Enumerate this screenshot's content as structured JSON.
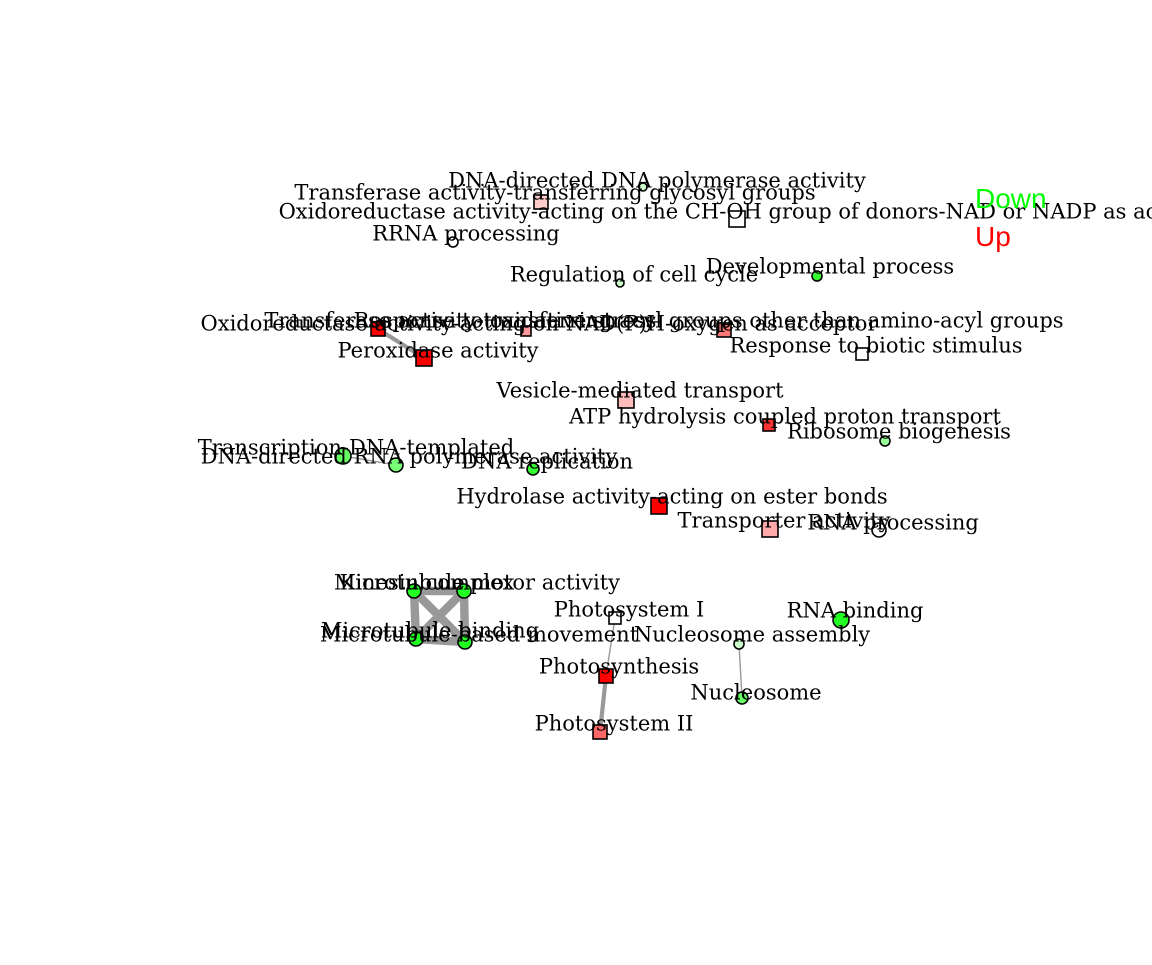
{
  "legend": [
    {
      "label": "Down",
      "color": "#00ff00"
    },
    {
      "label": "Up",
      "color": "#ff0000"
    }
  ],
  "nodes": [
    {
      "id": "dna_pol",
      "label": "DNA-directed DNA polymerase activity",
      "shape": "circle",
      "fill": "#ccffcc"
    },
    {
      "id": "transferase_glyco",
      "label": "Transferase activity-transferring glycosyl groups",
      "shape": "square",
      "fill": "#ffcccc"
    },
    {
      "id": "oxred_choh",
      "label": "Oxidoreductase activity-acting on the CH-OH group of donors-NAD or NADP as ac",
      "shape": "square",
      "fill": "#ffffff"
    },
    {
      "id": "rrna_proc",
      "label": "RRNA processing",
      "shape": "circle",
      "fill": "#ffffff"
    },
    {
      "id": "reg_cell_cycle",
      "label": "Regulation of cell cycle",
      "shape": "circle",
      "fill": "#ccffcc"
    },
    {
      "id": "dev_process",
      "label": "Developmental process",
      "shape": "circle",
      "fill": "#33ff33"
    },
    {
      "id": "resp_oxidative",
      "label": "Response to oxidative stress",
      "shape": "square",
      "fill": "#ff0000"
    },
    {
      "id": "oxred_nadph",
      "label": "Oxidoreductase activity-acting on NAD(P)H-oxygen as acceptor",
      "shape": "square",
      "fill": "#ff9999"
    },
    {
      "id": "transferase_acyl",
      "label": "Transferase activity-transferring acyl groups other than amino-acyl groups",
      "shape": "square",
      "fill": "#ff7777"
    },
    {
      "id": "peroxidase",
      "label": "Peroxidase activity",
      "shape": "square",
      "fill": "#ff0000"
    },
    {
      "id": "resp_biotic",
      "label": "Response to biotic stimulus",
      "shape": "square",
      "fill": "#ffffff"
    },
    {
      "id": "vesicle",
      "label": "Vesicle-mediated transport",
      "shape": "square",
      "fill": "#ffbbbb"
    },
    {
      "id": "atp_hydro",
      "label": "ATP hydrolysis coupled proton transport",
      "shape": "square",
      "fill": "#ff3333"
    },
    {
      "id": "ribosome_bio",
      "label": "Ribosome biogenesis",
      "shape": "circle",
      "fill": "#99ff99"
    },
    {
      "id": "transcription",
      "label": "Transcription-DNA-templated",
      "shape": "circle",
      "fill": "#66ff66"
    },
    {
      "id": "dna_rna_pol",
      "label": "DNA-directed RNA polymerase activity",
      "shape": "circle",
      "fill": "#77ff77"
    },
    {
      "id": "dna_repl",
      "label": "DNA replication",
      "shape": "circle",
      "fill": "#33ff33"
    },
    {
      "id": "hydrolase_ester",
      "label": "Hydrolase activity-acting on ester bonds",
      "shape": "square",
      "fill": "#ff0000"
    },
    {
      "id": "transporter",
      "label": "Transporter activity",
      "shape": "square",
      "fill": "#ffaaaa"
    },
    {
      "id": "rna_proc",
      "label": "RNA processing",
      "shape": "circle",
      "fill": "#ffffff"
    },
    {
      "id": "kinesin",
      "label": "Kinesin complex",
      "shape": "circle",
      "fill": "#22ff22"
    },
    {
      "id": "micro_motor",
      "label": "Microtubule motor activity",
      "shape": "circle",
      "fill": "#22ff22"
    },
    {
      "id": "micro_binding",
      "label": "Microtubule binding",
      "shape": "circle",
      "fill": "#22ff22"
    },
    {
      "id": "micro_movement",
      "label": "Microtubule-based movement",
      "shape": "circle",
      "fill": "#22ff22"
    },
    {
      "id": "photosystem1",
      "label": "Photosystem I",
      "shape": "square",
      "fill": "#ffffff"
    },
    {
      "id": "rna_binding",
      "label": "RNA binding",
      "shape": "circle",
      "fill": "#22ff22"
    },
    {
      "id": "nucleosome_asm",
      "label": "Nucleosome assembly",
      "shape": "circle",
      "fill": "#ccffcc"
    },
    {
      "id": "photosynthesis",
      "label": "Photosynthesis",
      "shape": "square",
      "fill": "#ff0000"
    },
    {
      "id": "nucleosome",
      "label": "Nucleosome",
      "shape": "circle",
      "fill": "#66ff66"
    },
    {
      "id": "photosystem2",
      "label": "Photosystem II",
      "shape": "square",
      "fill": "#ff6666"
    }
  ],
  "edges": [
    {
      "source": "resp_oxidative",
      "target": "peroxidase",
      "weight": 3
    },
    {
      "source": "transcription",
      "target": "dna_rna_pol",
      "weight": 1
    },
    {
      "source": "kinesin",
      "target": "micro_motor",
      "weight": 6
    },
    {
      "source": "kinesin",
      "target": "micro_binding",
      "weight": 6
    },
    {
      "source": "kinesin",
      "target": "micro_movement",
      "weight": 6
    },
    {
      "source": "micro_motor",
      "target": "micro_binding",
      "weight": 6
    },
    {
      "source": "micro_motor",
      "target": "micro_movement",
      "weight": 6
    },
    {
      "source": "micro_binding",
      "target": "micro_movement",
      "weight": 6
    },
    {
      "source": "photosystem1",
      "target": "photosynthesis",
      "weight": 1
    },
    {
      "source": "photosynthesis",
      "target": "photosystem2",
      "weight": 3
    },
    {
      "source": "nucleosome_asm",
      "target": "nucleosome",
      "weight": 1
    }
  ]
}
